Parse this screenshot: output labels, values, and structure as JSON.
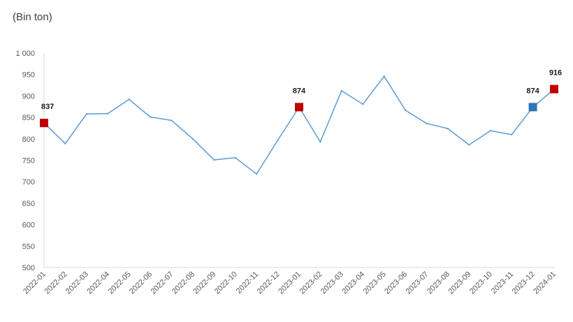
{
  "chart_data": {
    "type": "line",
    "unit_label": "(Bin ton)",
    "x": [
      "2022-01",
      "2022-02",
      "2022-03",
      "2022-04",
      "2022-05",
      "2022-06",
      "2022-07",
      "2022-08",
      "2022-09",
      "2022-10",
      "2022-11",
      "2022-12",
      "2023-01",
      "2023-02",
      "2023-03",
      "2023-04",
      "2023-05",
      "2023-06",
      "2023-07",
      "2023-08",
      "2023-09",
      "2023-10",
      "2023-11",
      "2023-12",
      "2024-01"
    ],
    "series": [
      {
        "values": [
          837,
          789,
          858,
          859,
          892,
          851,
          843,
          800,
          751,
          756,
          718,
          797,
          874,
          793,
          912,
          881,
          946,
          867,
          836,
          824,
          786,
          819,
          810,
          874,
          916
        ],
        "color": "#5b9bd5"
      }
    ],
    "ylim": [
      500,
      1000
    ],
    "yticks": [
      500,
      550,
      600,
      650,
      700,
      750,
      800,
      850,
      900,
      950,
      1000
    ],
    "ytick_labels": [
      "500",
      "550",
      "600",
      "650",
      "700",
      "750",
      "800",
      "850",
      "900",
      "950",
      "1 000"
    ],
    "grid": false,
    "highlights": [
      {
        "x": "2022-01",
        "value": 837,
        "label": "837",
        "color": "#c00000"
      },
      {
        "x": "2023-01",
        "value": 874,
        "label": "874",
        "color": "#c00000"
      },
      {
        "x": "2023-12",
        "value": 874,
        "label": "874",
        "color": "#2e75b6"
      },
      {
        "x": "2024-01",
        "value": 916,
        "label": "916",
        "color": "#c00000"
      }
    ]
  }
}
